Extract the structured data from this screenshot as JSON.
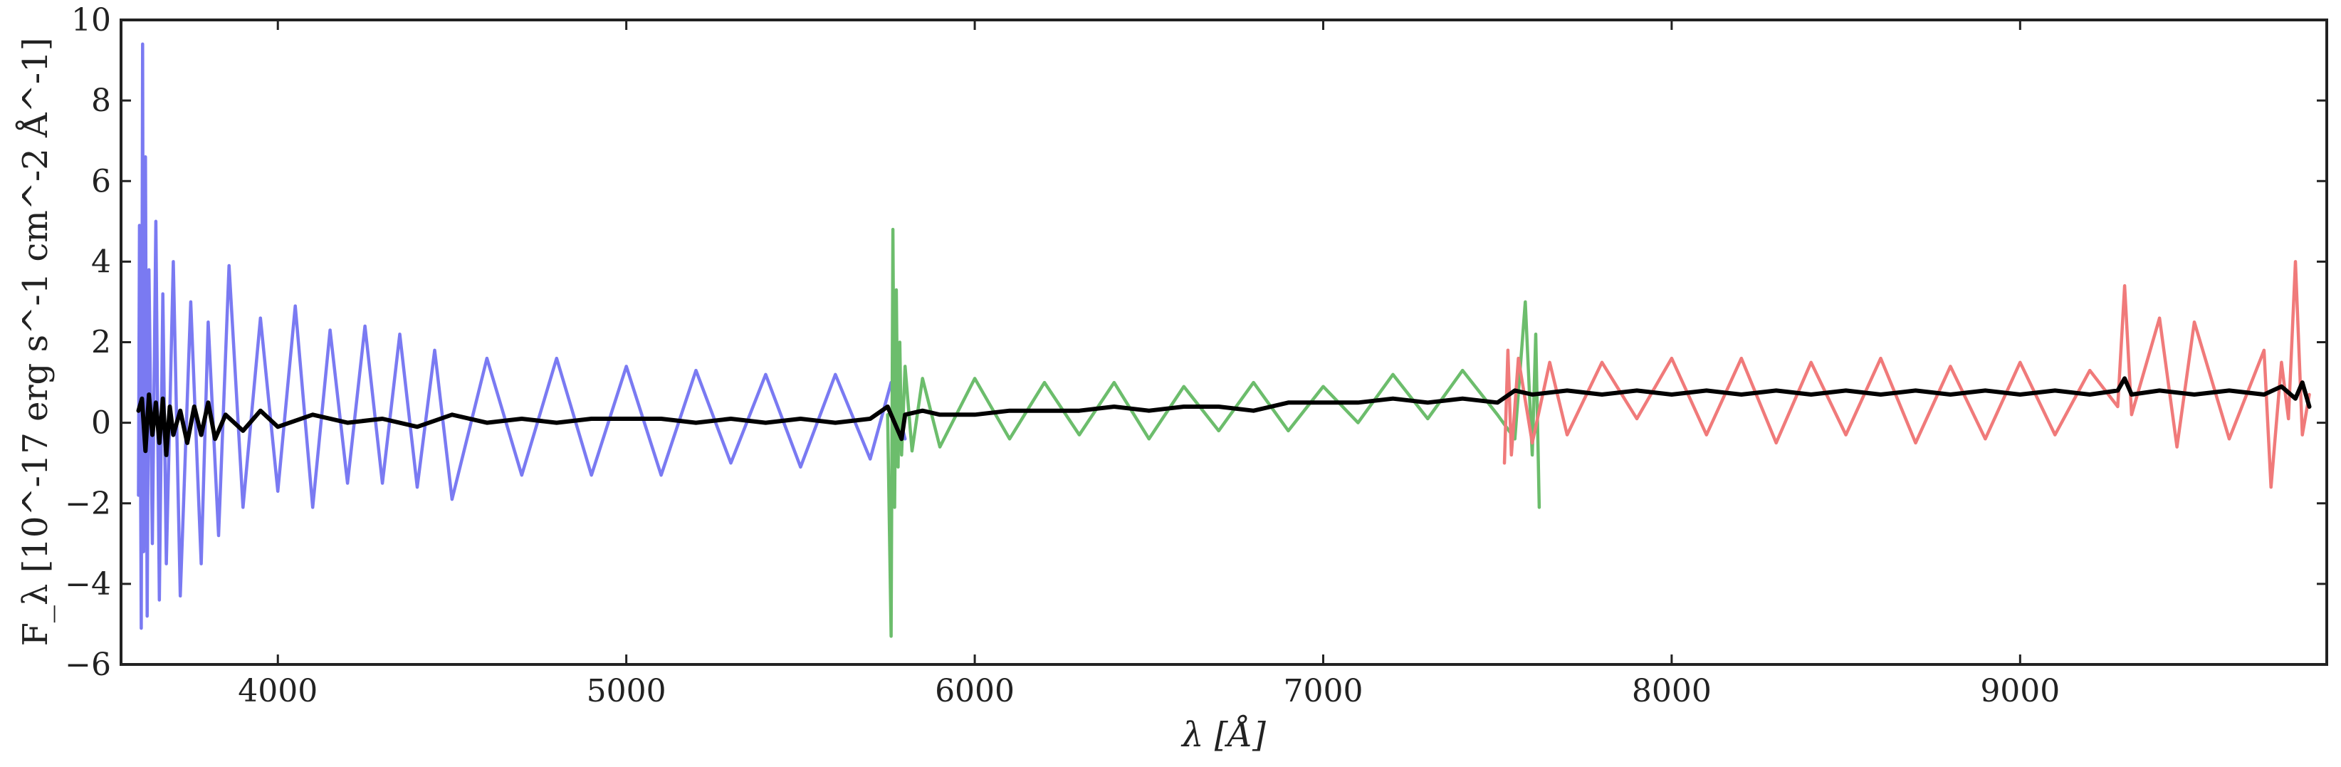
{
  "chart_data": {
    "type": "line",
    "xlabel": "λ [Å]",
    "ylabel": "F_λ [10^-17 erg s^-1 cm^-2 Å^-1]",
    "xlim": [
      3550,
      9880
    ],
    "ylim": [
      -6,
      10
    ],
    "grid": false,
    "x_ticks": [
      4000,
      5000,
      6000,
      7000,
      8000,
      9000
    ],
    "y_ticks": [
      -6,
      -4,
      -2,
      0,
      2,
      4,
      6,
      8,
      10
    ],
    "x_tick_labels": [
      "4000",
      "5000",
      "6000",
      "7000",
      "8000",
      "9000"
    ],
    "y_tick_labels": [
      "−6",
      "−4",
      "−2",
      "0",
      "2",
      "4",
      "6",
      "8",
      "10"
    ],
    "series": [
      {
        "color": "#7a7af2",
        "x": [
          3600,
          3603,
          3608,
          3612,
          3615,
          3620,
          3625,
          3630,
          3640,
          3650,
          3660,
          3670,
          3680,
          3700,
          3720,
          3750,
          3780,
          3800,
          3830,
          3860,
          3900,
          3950,
          4000,
          4050,
          4100,
          4150,
          4200,
          4250,
          4300,
          4350,
          4400,
          4450,
          4500,
          4600,
          4700,
          4800,
          4900,
          5000,
          5100,
          5200,
          5300,
          5400,
          5500,
          5600,
          5700,
          5760,
          5800
        ],
        "y": [
          -1.8,
          4.9,
          -5.1,
          9.4,
          -3.2,
          6.6,
          -4.8,
          3.8,
          -3.0,
          5.0,
          -4.4,
          3.2,
          -3.5,
          4.0,
          -4.3,
          3.0,
          -3.5,
          2.5,
          -2.8,
          3.9,
          -2.1,
          2.6,
          -1.7,
          2.9,
          -2.1,
          2.3,
          -1.5,
          2.4,
          -1.5,
          2.2,
          -1.6,
          1.8,
          -1.9,
          1.6,
          -1.3,
          1.6,
          -1.3,
          1.4,
          -1.3,
          1.3,
          -1.0,
          1.2,
          -1.1,
          1.2,
          -0.9,
          1.0,
          -0.4
        ]
      },
      {
        "color": "#6cbd6c",
        "x": [
          5750,
          5760,
          5765,
          5770,
          5775,
          5780,
          5785,
          5790,
          5800,
          5820,
          5850,
          5900,
          6000,
          6100,
          6200,
          6300,
          6400,
          6500,
          6600,
          6700,
          6800,
          6900,
          7000,
          7100,
          7200,
          7300,
          7400,
          7500,
          7550,
          7580,
          7600,
          7610,
          7620
        ],
        "y": [
          0.2,
          -5.3,
          4.8,
          -2.1,
          3.3,
          -1.1,
          2.0,
          -0.8,
          1.4,
          -0.7,
          1.1,
          -0.6,
          1.1,
          -0.4,
          1.0,
          -0.3,
          1.0,
          -0.4,
          0.9,
          -0.2,
          1.0,
          -0.2,
          0.9,
          0.0,
          1.2,
          0.1,
          1.3,
          0.2,
          -0.4,
          3.0,
          -0.8,
          2.2,
          -2.1
        ]
      },
      {
        "color": "#f07a7a",
        "x": [
          7520,
          7530,
          7540,
          7560,
          7600,
          7650,
          7700,
          7800,
          7900,
          8000,
          8100,
          8200,
          8300,
          8400,
          8500,
          8600,
          8700,
          8800,
          8900,
          9000,
          9100,
          9200,
          9280,
          9300,
          9320,
          9400,
          9450,
          9500,
          9600,
          9700,
          9720,
          9750,
          9770,
          9790,
          9810,
          9830
        ],
        "y": [
          -1.0,
          1.8,
          -0.8,
          1.6,
          -0.5,
          1.5,
          -0.3,
          1.5,
          0.1,
          1.6,
          -0.3,
          1.6,
          -0.5,
          1.5,
          -0.3,
          1.6,
          -0.5,
          1.4,
          -0.4,
          1.5,
          -0.3,
          1.3,
          0.4,
          3.4,
          0.2,
          2.6,
          -0.6,
          2.5,
          -0.4,
          1.8,
          -1.6,
          1.5,
          0.1,
          4.0,
          -0.3,
          0.7
        ]
      },
      {
        "color": "#000000",
        "x": [
          3600,
          3610,
          3620,
          3630,
          3640,
          3650,
          3660,
          3670,
          3680,
          3690,
          3700,
          3720,
          3740,
          3760,
          3780,
          3800,
          3820,
          3850,
          3900,
          3950,
          4000,
          4100,
          4200,
          4300,
          4400,
          4500,
          4600,
          4700,
          4800,
          4900,
          5000,
          5100,
          5200,
          5300,
          5400,
          5500,
          5600,
          5700,
          5750,
          5790,
          5800,
          5850,
          5900,
          6000,
          6100,
          6200,
          6300,
          6400,
          6500,
          6600,
          6700,
          6800,
          6900,
          7000,
          7100,
          7200,
          7300,
          7400,
          7500,
          7550,
          7600,
          7700,
          7800,
          7900,
          8000,
          8100,
          8200,
          8300,
          8400,
          8500,
          8600,
          8700,
          8800,
          8900,
          9000,
          9100,
          9200,
          9280,
          9300,
          9320,
          9400,
          9500,
          9600,
          9700,
          9750,
          9790,
          9810,
          9830
        ],
        "y": [
          0.3,
          0.6,
          -0.7,
          0.7,
          -0.3,
          0.5,
          -0.5,
          0.6,
          -0.8,
          0.4,
          -0.3,
          0.3,
          -0.5,
          0.4,
          -0.3,
          0.5,
          -0.4,
          0.2,
          -0.2,
          0.3,
          -0.1,
          0.2,
          0.0,
          0.1,
          -0.1,
          0.2,
          0.0,
          0.1,
          0.0,
          0.1,
          0.1,
          0.1,
          0.0,
          0.1,
          0.0,
          0.1,
          0.0,
          0.1,
          0.4,
          -0.4,
          0.2,
          0.3,
          0.2,
          0.2,
          0.3,
          0.3,
          0.3,
          0.4,
          0.3,
          0.4,
          0.4,
          0.3,
          0.5,
          0.5,
          0.5,
          0.6,
          0.5,
          0.6,
          0.5,
          0.8,
          0.7,
          0.8,
          0.7,
          0.8,
          0.7,
          0.8,
          0.7,
          0.8,
          0.7,
          0.8,
          0.7,
          0.8,
          0.7,
          0.8,
          0.7,
          0.8,
          0.7,
          0.8,
          1.1,
          0.7,
          0.8,
          0.7,
          0.8,
          0.7,
          0.9,
          0.6,
          1.0,
          0.4
        ]
      }
    ]
  }
}
